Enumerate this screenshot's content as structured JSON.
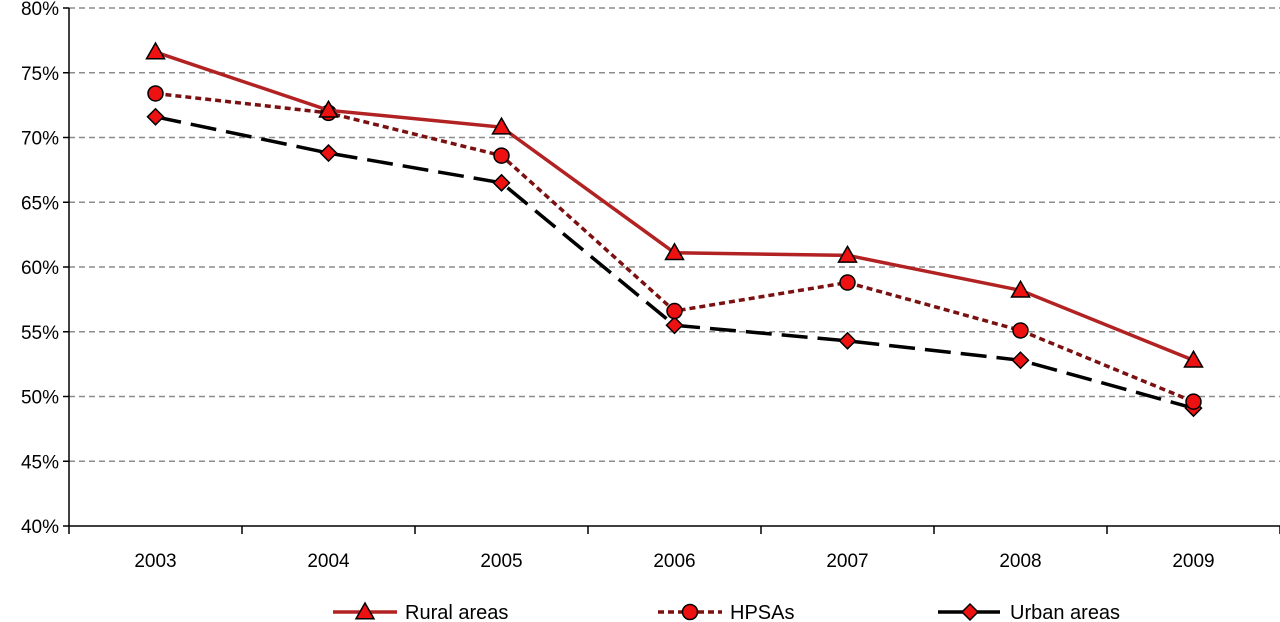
{
  "chart_data": {
    "type": "line",
    "categories": [
      "2003",
      "2004",
      "2005",
      "2006",
      "2007",
      "2008",
      "2009"
    ],
    "y_tick_labels": [
      "40%",
      "45%",
      "50%",
      "55%",
      "60%",
      "65%",
      "70%",
      "75%",
      "80%"
    ],
    "ylim": [
      40,
      80
    ],
    "y_unit": "%",
    "grid": "horizontal dashed",
    "legend_position": "bottom",
    "series": [
      {
        "name": "Rural areas",
        "values": [
          76.6,
          72.1,
          70.8,
          61.1,
          60.9,
          58.2,
          52.8
        ],
        "color": "#b22222",
        "line_style": "solid",
        "marker": "triangle"
      },
      {
        "name": "HPSAs",
        "values": [
          73.4,
          71.9,
          68.6,
          56.6,
          58.8,
          55.1,
          49.6
        ],
        "color": "#7b1010",
        "line_style": "dotted",
        "marker": "circle"
      },
      {
        "name": "Urban areas",
        "values": [
          71.6,
          68.8,
          66.5,
          55.5,
          54.3,
          52.8,
          49.1
        ],
        "color": "#000000",
        "line_style": "dashed",
        "marker": "diamond"
      }
    ],
    "marker_fill": "#ee1111"
  }
}
